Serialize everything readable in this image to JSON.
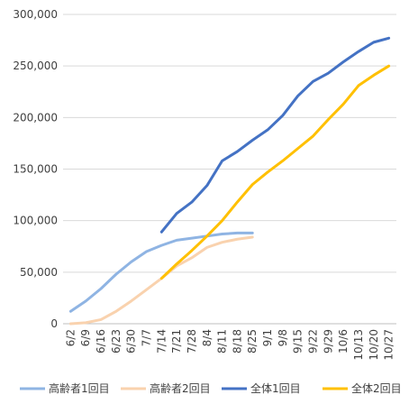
{
  "chart_data": {
    "type": "line",
    "title": "",
    "xlabel": "",
    "ylabel": "",
    "ylim": [
      0,
      300000
    ],
    "yticks": [
      0,
      50000,
      100000,
      150000,
      200000,
      250000,
      300000
    ],
    "ytick_labels": [
      "0",
      "50,000",
      "100,000",
      "150,000",
      "200,000",
      "250,000",
      "300,000"
    ],
    "grid": "horizontal",
    "legend_position": "bottom",
    "categories": [
      "6/2",
      "6/9",
      "6/16",
      "6/23",
      "6/30",
      "7/7",
      "7/14",
      "7/21",
      "7/28",
      "8/4",
      "8/11",
      "8/18",
      "8/25",
      "9/1",
      "9/8",
      "9/15",
      "9/22",
      "9/29",
      "10/6",
      "10/13",
      "10/20",
      "10/27"
    ],
    "series": [
      {
        "name": "高齢者1回目",
        "color": "#8fb4e3",
        "values": [
          12000,
          22000,
          34000,
          48000,
          60000,
          70000,
          76000,
          81000,
          83000,
          85000,
          87000,
          88000,
          88000,
          null,
          null,
          null,
          null,
          null,
          null,
          null,
          null,
          null
        ]
      },
      {
        "name": "高齢者2回目",
        "color": "#f9d2ae",
        "values": [
          0,
          1000,
          4000,
          12000,
          22000,
          33000,
          44000,
          56000,
          64000,
          74000,
          79000,
          82000,
          84000,
          null,
          null,
          null,
          null,
          null,
          null,
          null,
          null,
          null
        ]
      },
      {
        "name": "全体1回目",
        "color": "#4472c4",
        "values": [
          null,
          null,
          null,
          null,
          null,
          null,
          89000,
          107000,
          118000,
          134000,
          158000,
          167000,
          178000,
          188000,
          202000,
          221000,
          235000,
          243000,
          254000,
          264000,
          273000,
          277000
        ]
      },
      {
        "name": "全体2回目",
        "color": "#ffc000",
        "values": [
          null,
          null,
          null,
          null,
          null,
          null,
          44000,
          58000,
          71000,
          85000,
          100000,
          118000,
          135000,
          147000,
          158000,
          170000,
          182000,
          198000,
          213000,
          231000,
          241000,
          250000
        ]
      }
    ]
  }
}
